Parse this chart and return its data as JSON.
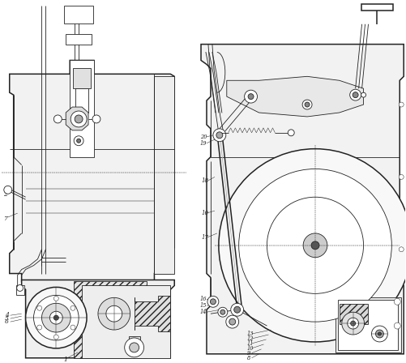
{
  "bg_color": "#ffffff",
  "lc": "#222222",
  "lw": 0.6,
  "tlw": 1.1,
  "vlw": 0.35,
  "figsize": [
    5.02,
    4.48
  ],
  "dpi": 100
}
